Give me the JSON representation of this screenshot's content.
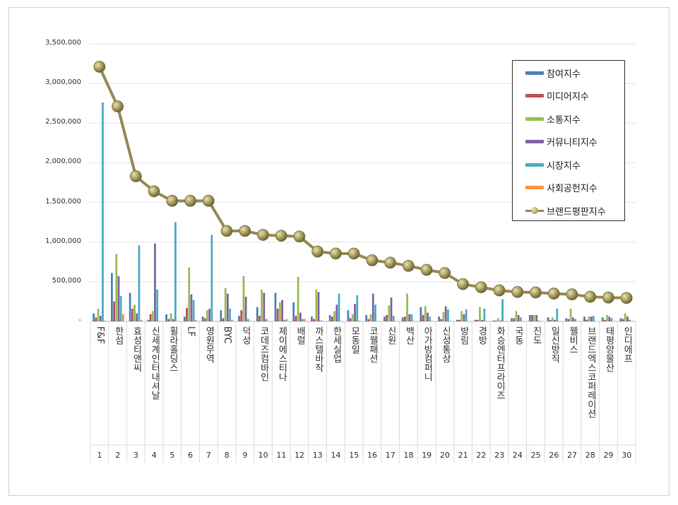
{
  "chart_data": {
    "type": "bar",
    "title": "",
    "xlabel": "",
    "ylabel": "",
    "ylim": [
      0,
      3500000
    ],
    "yticks": [
      "-",
      "500,000",
      "1,000,000",
      "1,500,000",
      "2,000,000",
      "2,500,000",
      "3,000,000",
      "3,500,000"
    ],
    "ytick_values": [
      0,
      500000,
      1000000,
      1500000,
      2000000,
      2500000,
      3000000,
      3500000
    ],
    "grid": true,
    "legend_position": "top-right",
    "ranks": [
      "1",
      "2",
      "3",
      "4",
      "5",
      "6",
      "7",
      "8",
      "9",
      "10",
      "11",
      "12",
      "13",
      "14",
      "15",
      "16",
      "17",
      "18",
      "19",
      "20",
      "21",
      "22",
      "23",
      "24",
      "25",
      "26",
      "27",
      "28",
      "29",
      "30"
    ],
    "categories": [
      "F&F",
      "한섬",
      "효성티앤씨",
      "신세계인터내셔날",
      "휠라홀딩스",
      "LF",
      "영원무역",
      "BYC",
      "덕성",
      "코데즈컴바인",
      "제이에스티나",
      "배럴",
      "까스텔바작",
      "한세실업",
      "모동일",
      "코웰패션",
      "신원",
      "백산",
      "아가방컴퍼니",
      "신성통상",
      "방림",
      "경방",
      "화승엔터프라이즈",
      "국동",
      "진도",
      "일신방직",
      "웰비스",
      "브랜드엑스코퍼레이션",
      "태평양물산",
      "인디에프"
    ],
    "series": [
      {
        "name": "참여지수",
        "type": "bar",
        "color": "#4F81BD",
        "values": [
          100000,
          610000,
          360000,
          20000,
          90000,
          60000,
          60000,
          140000,
          70000,
          180000,
          360000,
          240000,
          60000,
          80000,
          140000,
          80000,
          60000,
          50000,
          180000,
          60000,
          20000,
          20000,
          10000,
          40000,
          80000,
          50000,
          40000,
          60000,
          50000,
          40000
        ]
      },
      {
        "name": "미디어지수",
        "type": "bar",
        "color": "#C0504D",
        "values": [
          50000,
          250000,
          160000,
          90000,
          30000,
          170000,
          40000,
          40000,
          140000,
          70000,
          160000,
          70000,
          30000,
          60000,
          40000,
          30000,
          80000,
          60000,
          80000,
          30000,
          20000,
          20000,
          10000,
          40000,
          80000,
          20000,
          30000,
          20000,
          20000,
          30000
        ]
      },
      {
        "name": "소통지수",
        "type": "bar",
        "color": "#9BBB59",
        "values": [
          160000,
          850000,
          210000,
          130000,
          100000,
          680000,
          140000,
          420000,
          570000,
          400000,
          240000,
          560000,
          400000,
          130000,
          90000,
          90000,
          200000,
          350000,
          190000,
          120000,
          130000,
          180000,
          40000,
          130000,
          80000,
          50000,
          160000,
          60000,
          80000,
          100000
        ]
      },
      {
        "name": "커뮤니티지수",
        "type": "bar",
        "color": "#8064A2",
        "values": [
          70000,
          570000,
          100000,
          980000,
          30000,
          340000,
          160000,
          350000,
          310000,
          360000,
          270000,
          110000,
          370000,
          210000,
          220000,
          350000,
          300000,
          90000,
          110000,
          190000,
          90000,
          20000,
          10000,
          80000,
          80000,
          20000,
          50000,
          60000,
          60000,
          60000
        ]
      },
      {
        "name": "시장지수",
        "type": "bar",
        "color": "#4BACC6",
        "values": [
          2760000,
          320000,
          960000,
          400000,
          1250000,
          270000,
          1090000,
          160000,
          30000,
          30000,
          20000,
          30000,
          10000,
          350000,
          330000,
          210000,
          70000,
          90000,
          60000,
          150000,
          150000,
          160000,
          280000,
          50000,
          10000,
          160000,
          30000,
          70000,
          40000,
          20000
        ]
      },
      {
        "name": "사회공헌지수",
        "type": "bar",
        "color": "#F79646",
        "values": [
          10000,
          90000,
          20000,
          5000,
          5000,
          20000,
          5000,
          20000,
          5000,
          5000,
          30000,
          30000,
          5000,
          5000,
          10000,
          5000,
          5000,
          5000,
          5000,
          5000,
          5000,
          5000,
          5000,
          5000,
          5000,
          5000,
          5000,
          5000,
          5000,
          5000
        ]
      },
      {
        "name": "브랜드평판지수",
        "type": "line",
        "color": "#948A54",
        "values": [
          3210000,
          2710000,
          1830000,
          1640000,
          1520000,
          1520000,
          1520000,
          1140000,
          1140000,
          1090000,
          1080000,
          1070000,
          880000,
          855000,
          855000,
          770000,
          740000,
          700000,
          650000,
          610000,
          470000,
          430000,
          390000,
          370000,
          365000,
          350000,
          340000,
          310000,
          300000,
          295000
        ]
      }
    ]
  }
}
